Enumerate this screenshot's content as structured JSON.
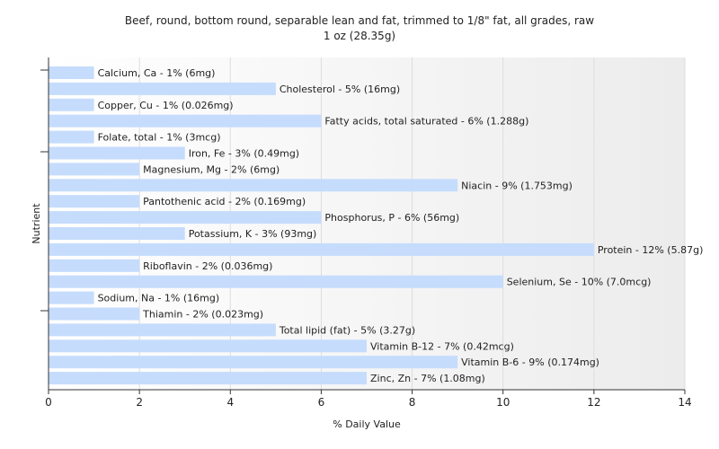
{
  "chart_data": {
    "type": "bar",
    "orientation": "horizontal",
    "title": "Beef, round, bottom round, separable lean and fat, trimmed to 1/8\" fat, all grades, raw",
    "subtitle": "1 oz (28.35g)",
    "xlabel": "% Daily Value",
    "ylabel": "Nutrient",
    "xlim": [
      0,
      14
    ],
    "xticks": [
      0,
      2,
      4,
      6,
      8,
      10,
      12,
      14
    ],
    "grid": true,
    "bar_color": "#c5dcfd",
    "categories": [
      "Calcium, Ca",
      "Cholesterol",
      "Copper, Cu",
      "Fatty acids, total saturated",
      "Folate, total",
      "Iron, Fe",
      "Magnesium, Mg",
      "Niacin",
      "Pantothenic acid",
      "Phosphorus, P",
      "Potassium, K",
      "Protein",
      "Riboflavin",
      "Selenium, Se",
      "Sodium, Na",
      "Thiamin",
      "Total lipid (fat)",
      "Vitamin B-12",
      "Vitamin B-6",
      "Zinc, Zn"
    ],
    "values": [
      1,
      5,
      1,
      6,
      1,
      3,
      2,
      9,
      2,
      6,
      3,
      12,
      2,
      10,
      1,
      2,
      5,
      7,
      9,
      7
    ],
    "labels": [
      "Calcium, Ca - 1% (6mg)",
      "Cholesterol - 5% (16mg)",
      "Copper, Cu - 1% (0.026mg)",
      "Fatty acids, total saturated - 6% (1.288g)",
      "Folate, total - 1% (3mcg)",
      "Iron, Fe - 3% (0.49mg)",
      "Magnesium, Mg - 2% (6mg)",
      "Niacin - 9% (1.753mg)",
      "Pantothenic acid - 2% (0.169mg)",
      "Phosphorus, P - 6% (56mg)",
      "Potassium, K - 3% (93mg)",
      "Protein - 12% (5.87g)",
      "Riboflavin - 2% (0.036mg)",
      "Selenium, Se - 10% (7.0mcg)",
      "Sodium, Na - 1% (16mg)",
      "Thiamin - 2% (0.023mg)",
      "Total lipid (fat) - 5% (3.27g)",
      "Vitamin B-12 - 7% (0.42mcg)",
      "Vitamin B-6 - 9% (0.174mg)",
      "Zinc, Zn - 7% (1.08mg)"
    ]
  }
}
